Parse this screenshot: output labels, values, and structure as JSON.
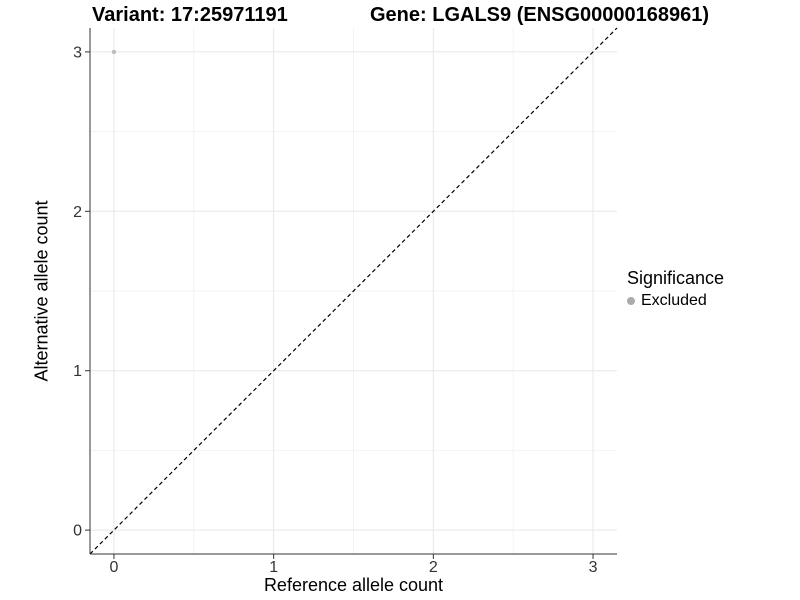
{
  "titles": {
    "variant": "Variant: 17:25971191",
    "gene": "Gene: LGALS9 (ENSG00000168961)"
  },
  "axes": {
    "x_label": "Reference allele count",
    "y_label": "Alternative allele count"
  },
  "legend": {
    "title": "Significance",
    "items": [
      {
        "label": "Excluded",
        "color": "#ababab"
      }
    ]
  },
  "chart_data": {
    "type": "scatter",
    "title": "Variant: 17:25971191   Gene: LGALS9 (ENSG00000168961)",
    "xlabel": "Reference allele count",
    "ylabel": "Alternative allele count",
    "xlim": [
      -0.15,
      3.15
    ],
    "ylim": [
      -0.15,
      3.15
    ],
    "x_ticks": [
      0,
      1,
      2,
      3
    ],
    "y_ticks": [
      0,
      1,
      2,
      3
    ],
    "x_minor_ticks": [
      0.5,
      1.5,
      2.5
    ],
    "y_minor_ticks": [
      0.5,
      1.5,
      2.5
    ],
    "grid": true,
    "legend_position": "right",
    "series": [
      {
        "name": "Excluded",
        "color": "#bdbdbd",
        "points": [
          {
            "x": 0,
            "y": 3
          }
        ]
      }
    ],
    "reference_line": {
      "kind": "identity",
      "from": [
        -0.15,
        -0.15
      ],
      "to": [
        3.15,
        3.15
      ],
      "style": "dashed",
      "color": "#000000"
    }
  },
  "style_colors": {
    "grid_major": "#e7e7e7",
    "grid_minor": "#f3f3f3",
    "axis_line": "#333333",
    "tick_label": "#333333"
  }
}
